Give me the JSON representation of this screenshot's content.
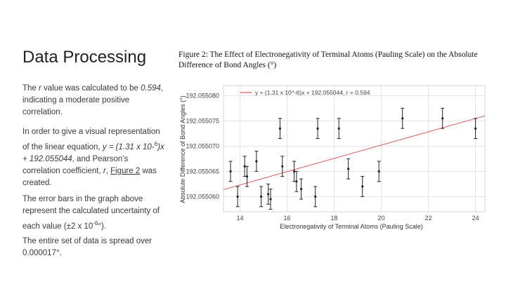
{
  "slide": {
    "title": "Data Processing",
    "p1_a": "The ",
    "p1_r": "r",
    "p1_b": " value was calculated to be ",
    "p1_val": "0.594",
    "p1_c": ", indicating a moderate positive correlation.",
    "p2_a": "In order to give a visual representation of the linear equation, ",
    "p2_eq1": "y = (1.31 x 10-",
    "p2_exp": "6",
    "p2_eq2": ")x + 192.055044",
    "p2_b": ", and Pearson's correlation coefficient, ",
    "p2_r": "r",
    "p2_c": ", ",
    "p2_link": "Figure 2",
    "p2_d": " was created.",
    "p3_a": "The error bars in the graph above represent the calculated uncertainty of each value (±2 x 10",
    "p3_exp": "-6",
    "p3_b": "°).",
    "p4": "The entire set of data is spread over 0.000017°."
  },
  "figure": {
    "caption": "Figure 2: The Effect of Electronegativity of Terminal Atoms (Pauling Scale) on the Absolute Difference of Bond Angles (°)"
  },
  "colors": {
    "fit_line": "#e05555",
    "points": "#222222",
    "grid": "#dddddd"
  },
  "chart_data": {
    "type": "scatter",
    "title": "Figure 2: The Effect of Electronegativity of Terminal Atoms (Pauling Scale) on the Absolute Difference of Bond Angles (°)",
    "xlabel": "Electronegativity of Terminal Atoms (Pauling Scale)",
    "ylabel": "Absolute Difference of Bond Angles (°)",
    "xlim": [
      13.3,
      24.4
    ],
    "ylim": [
      192.055057,
      192.055082
    ],
    "xticks": [
      14,
      16,
      18,
      20,
      22,
      24
    ],
    "yticks": [
      192.05506,
      192.055065,
      192.05507,
      192.055075,
      192.05508
    ],
    "ytick_labels": [
      "192.055060",
      "192.055065",
      "192.055070",
      "192.055075",
      "192.055080"
    ],
    "grid": true,
    "error": 2e-06,
    "points": [
      {
        "x": 13.6,
        "y": 192.055065
      },
      {
        "x": 13.9,
        "y": 192.05506
      },
      {
        "x": 14.2,
        "y": 192.055066
      },
      {
        "x": 14.3,
        "y": 192.055064
      },
      {
        "x": 14.7,
        "y": 192.055067
      },
      {
        "x": 14.9,
        "y": 192.05506
      },
      {
        "x": 15.2,
        "y": 192.0550605
      },
      {
        "x": 15.3,
        "y": 192.0550595
      },
      {
        "x": 15.7,
        "y": 192.0550735
      },
      {
        "x": 15.8,
        "y": 192.055066
      },
      {
        "x": 16.3,
        "y": 192.055065
      },
      {
        "x": 16.4,
        "y": 192.055063
      },
      {
        "x": 16.6,
        "y": 192.0550615
      },
      {
        "x": 17.2,
        "y": 192.05506
      },
      {
        "x": 17.3,
        "y": 192.0550735
      },
      {
        "x": 18.2,
        "y": 192.0550735
      },
      {
        "x": 18.6,
        "y": 192.0550655
      },
      {
        "x": 19.2,
        "y": 192.055062
      },
      {
        "x": 19.9,
        "y": 192.055065
      },
      {
        "x": 20.9,
        "y": 192.0550755
      },
      {
        "x": 22.6,
        "y": 192.0550755
      },
      {
        "x": 24.0,
        "y": 192.0550735
      }
    ],
    "fit": {
      "label": "y = (1.31 x 10^-6)x + 192.055044, r = 0.594",
      "x": [
        13.3,
        24.4
      ],
      "y": [
        192.0550614,
        192.055076
      ]
    }
  }
}
